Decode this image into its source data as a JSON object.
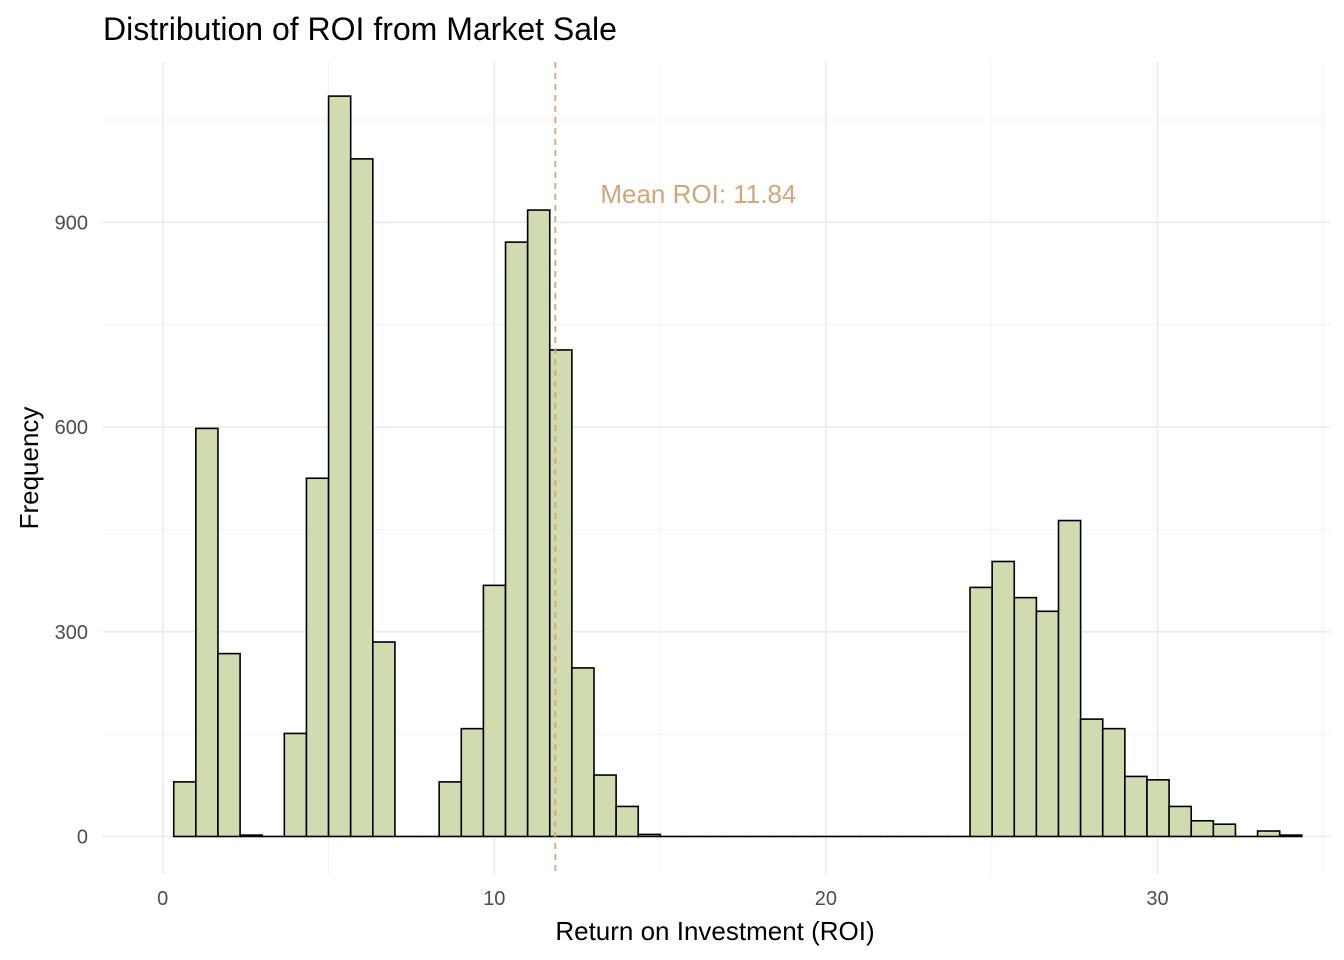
{
  "chart_data": {
    "type": "bar",
    "subtype": "histogram",
    "title": "Distribution of ROI from Market Sale",
    "xlabel": "Return on Investment (ROI)",
    "ylabel": "Frequency",
    "xlim": [
      -1.8,
      35.2
    ],
    "ylim": [
      -55,
      1135
    ],
    "x_ticks": [
      0,
      10,
      20,
      30
    ],
    "y_ticks": [
      0,
      300,
      600,
      900
    ],
    "grid": true,
    "bin_width": 0.667,
    "bin_start": 0.333,
    "values": [
      80,
      598,
      268,
      2,
      0,
      151,
      525,
      1085,
      993,
      285,
      0,
      0,
      80,
      158,
      368,
      871,
      918,
      713,
      247,
      90,
      44,
      3,
      0,
      0,
      0,
      0,
      0,
      0,
      0,
      0,
      0,
      0,
      0,
      0,
      0,
      0,
      365,
      403,
      350,
      330,
      463,
      172,
      158,
      88,
      83,
      44,
      23,
      18,
      0,
      8,
      2
    ],
    "mean_line": {
      "value": 11.84,
      "label": "Mean ROI: 11.84",
      "color": "#d2a679"
    },
    "bar_fill": "#d0dbb0",
    "bar_stroke": "#000000"
  }
}
